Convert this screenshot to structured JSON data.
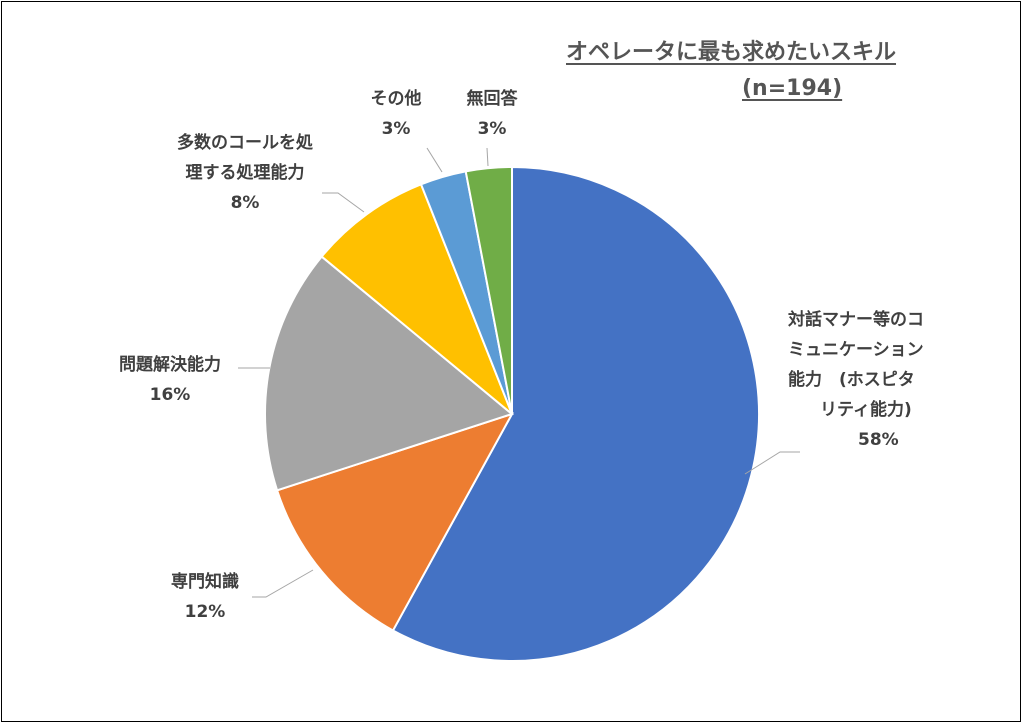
{
  "chart_data": {
    "type": "pie",
    "title": "オペレータに最も求めたいスキル",
    "subtitle": "(n=194)",
    "slices": [
      {
        "label_lines": [
          "対話マナー等のコ",
          "ミュニケーション",
          "能力　(ホスピタ",
          "リティ能力)"
        ],
        "value": 58,
        "value_label": "58%",
        "color": "#4472C4"
      },
      {
        "label_lines": [
          "専門知識"
        ],
        "value": 12,
        "value_label": "12%",
        "color": "#ED7D31"
      },
      {
        "label_lines": [
          "問題解決能力"
        ],
        "value": 16,
        "value_label": "16%",
        "color": "#A5A5A5"
      },
      {
        "label_lines": [
          "多数のコールを処",
          "理する処理能力"
        ],
        "value": 8,
        "value_label": "8%",
        "color": "#FFC000"
      },
      {
        "label_lines": [
          "その他"
        ],
        "value": 3,
        "value_label": "3%",
        "color": "#5B9BD5"
      },
      {
        "label_lines": [
          "無回答"
        ],
        "value": 3,
        "value_label": "3%",
        "color": "#70AD47"
      }
    ]
  }
}
